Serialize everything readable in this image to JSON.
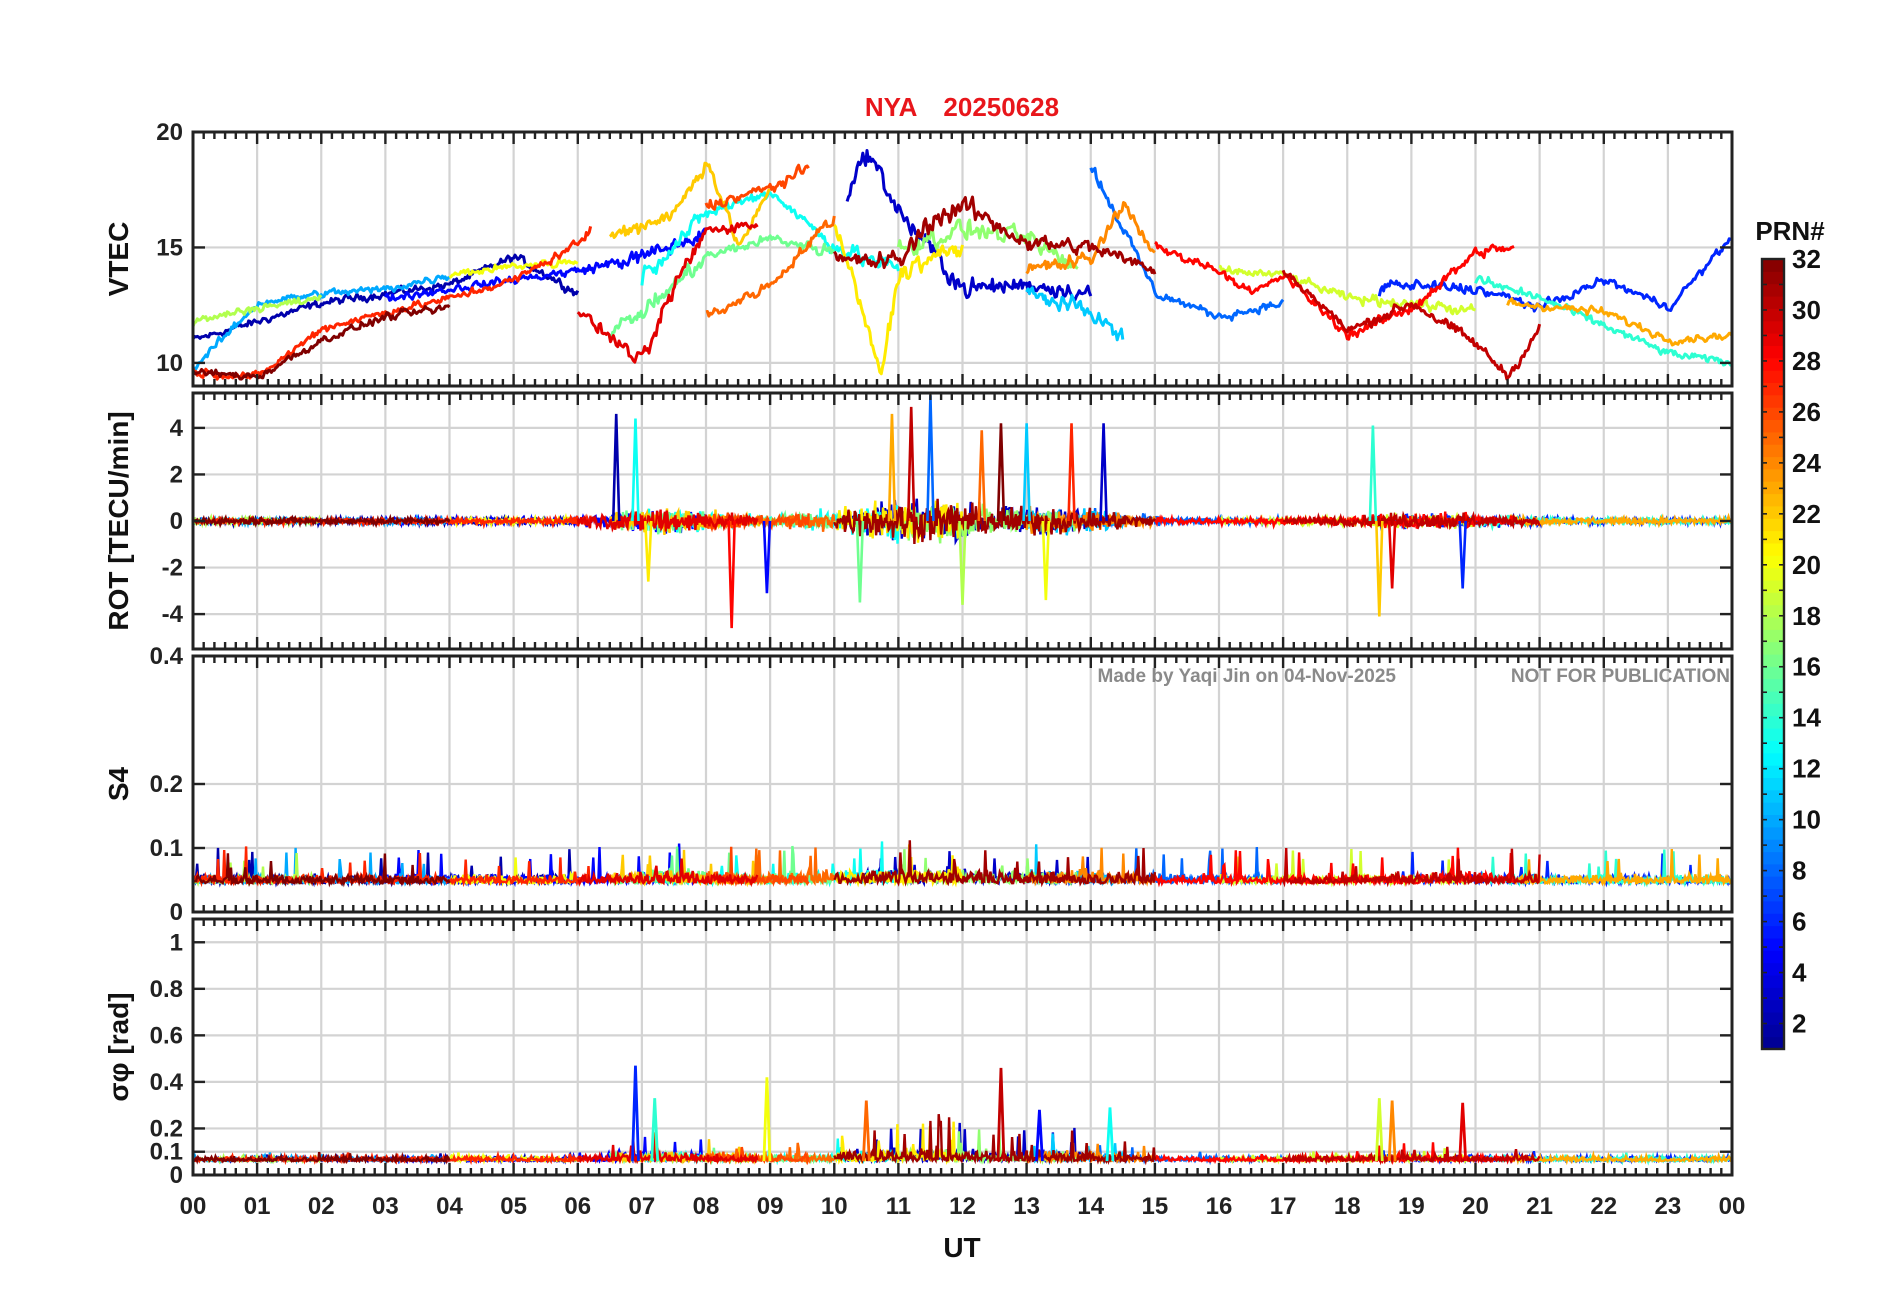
{
  "chart_data": {
    "type": "line",
    "title": {
      "station": "NYA",
      "date": "20250628"
    },
    "xlabel": "UT",
    "x_range": [
      0,
      24
    ],
    "x_ticks": [
      "00",
      "01",
      "02",
      "03",
      "04",
      "05",
      "06",
      "07",
      "08",
      "09",
      "10",
      "11",
      "12",
      "13",
      "14",
      "15",
      "16",
      "17",
      "18",
      "19",
      "20",
      "21",
      "22",
      "23",
      "00"
    ],
    "watermark": {
      "made_by": "Made by Yaqi Jin on 04-Nov-2025",
      "notice": "NOT FOR PUBLICATION"
    },
    "colorbar": {
      "label": "PRN#",
      "range": [
        1,
        32
      ],
      "ticks": [
        "2",
        "4",
        "6",
        "8",
        "10",
        "12",
        "14",
        "16",
        "18",
        "20",
        "22",
        "24",
        "26",
        "28",
        "30",
        "32"
      ],
      "colormap": [
        "#00008f",
        "#0000ff",
        "#0080ff",
        "#00ffff",
        "#80ff80",
        "#ffff00",
        "#ff8000",
        "#ff0000",
        "#800000"
      ]
    },
    "panels": [
      {
        "id": "vtec",
        "ylabel": "VTEC",
        "ylim": [
          9,
          20
        ],
        "yticks": [
          10,
          15,
          20
        ],
        "ytick_labels": [
          "10",
          "15",
          "20"
        ]
      },
      {
        "id": "rot",
        "ylabel": "ROT [TECU/min]",
        "ylim": [
          -5.5,
          5.5
        ],
        "yticks": [
          -4,
          -2,
          0,
          2,
          4
        ],
        "ytick_labels": [
          "-4",
          "-2",
          "0",
          "2",
          "4"
        ]
      },
      {
        "id": "s4",
        "ylabel": "S4",
        "ylim": [
          0,
          0.4
        ],
        "yticks": [
          0,
          0.1,
          0.2,
          0.4
        ],
        "ytick_labels": [
          "0",
          "0.1",
          "0.2",
          "0.4"
        ]
      },
      {
        "id": "sigma",
        "ylabel": "σφ [rad]",
        "ylim": [
          0,
          1.1
        ],
        "yticks": [
          0,
          0.1,
          0.2,
          0.4,
          0.6,
          0.8,
          1
        ],
        "ytick_labels": [
          "0",
          "0.1",
          "0.2",
          "0.4",
          "0.6",
          "0.8",
          "1"
        ]
      }
    ],
    "series": [
      {
        "prn": 2,
        "vtec": [
          [
            0,
            11.0
          ],
          [
            2,
            12.6
          ],
          [
            4,
            13.4
          ],
          [
            5,
            14.6
          ],
          [
            6,
            13.0
          ]
        ]
      },
      {
        "prn": 3,
        "vtec": [
          [
            10.2,
            17.5
          ],
          [
            10.5,
            19.2
          ],
          [
            11,
            16.5
          ],
          [
            12,
            13.2
          ],
          [
            13,
            13.4
          ],
          [
            14,
            13.0
          ]
        ]
      },
      {
        "prn": 5,
        "vtec": [
          [
            3,
            12.8
          ],
          [
            5,
            13.6
          ],
          [
            6,
            14.0
          ],
          [
            7,
            14.6
          ],
          [
            8,
            15.6
          ]
        ]
      },
      {
        "prn": 6,
        "vtec": [
          [
            18.5,
            13.4
          ],
          [
            20,
            13.2
          ],
          [
            21,
            12.4
          ],
          [
            22,
            13.6
          ],
          [
            23,
            12.4
          ],
          [
            24,
            15.5
          ]
        ]
      },
      {
        "prn": 8,
        "vtec": [
          [
            14,
            18.5
          ],
          [
            15,
            13.0
          ],
          [
            16,
            12.0
          ],
          [
            17,
            12.6
          ]
        ]
      },
      {
        "prn": 10,
        "vtec": [
          [
            0,
            9.8
          ],
          [
            1,
            12.6
          ],
          [
            2,
            13.0
          ],
          [
            3,
            13.2
          ],
          [
            4,
            13.8
          ]
        ]
      },
      {
        "prn": 11,
        "vtec": [
          [
            13,
            13.0
          ],
          [
            14,
            12.2
          ],
          [
            14.5,
            11.0
          ]
        ]
      },
      {
        "prn": 13,
        "vtec": [
          [
            7,
            13.8
          ],
          [
            8,
            16.5
          ],
          [
            9,
            17.4
          ],
          [
            10,
            15.0
          ],
          [
            11,
            14.0
          ]
        ]
      },
      {
        "prn": 14,
        "vtec": [
          [
            20,
            13.6
          ],
          [
            21,
            12.8
          ],
          [
            22,
            11.6
          ],
          [
            23,
            10.4
          ],
          [
            24,
            10.0
          ]
        ]
      },
      {
        "prn": 16,
        "vtec": [
          [
            6.5,
            11.4
          ],
          [
            7,
            12.2
          ],
          [
            8,
            14.6
          ],
          [
            9,
            15.4
          ],
          [
            10,
            14.8
          ]
        ]
      },
      {
        "prn": 17,
        "vtec": [
          [
            11,
            15.0
          ],
          [
            12,
            15.8
          ],
          [
            13,
            15.4
          ],
          [
            13.8,
            14.0
          ]
        ]
      },
      {
        "prn": 18,
        "vtec": [
          [
            0,
            11.8
          ],
          [
            1,
            12.4
          ],
          [
            2,
            12.8
          ]
        ]
      },
      {
        "prn": 19,
        "vtec": [
          [
            16,
            14.0
          ],
          [
            17,
            13.8
          ],
          [
            18,
            12.8
          ],
          [
            19,
            12.6
          ],
          [
            20,
            12.2
          ]
        ]
      },
      {
        "prn": 20,
        "vtec": [
          [
            4,
            13.8
          ],
          [
            5,
            14.2
          ],
          [
            6,
            14.4
          ]
        ]
      },
      {
        "prn": 21,
        "vtec": [
          [
            10,
            16.0
          ],
          [
            10.5,
            11.5
          ],
          [
            10.7,
            9.3
          ],
          [
            11,
            14.0
          ],
          [
            12,
            15.0
          ]
        ]
      },
      {
        "prn": 22,
        "vtec": [
          [
            6.5,
            15.5
          ],
          [
            7.5,
            16.5
          ],
          [
            8,
            18.8
          ],
          [
            8.5,
            15.0
          ],
          [
            9,
            17.6
          ]
        ]
      },
      {
        "prn": 23,
        "vtec": [
          [
            20.5,
            12.6
          ],
          [
            22,
            12.2
          ],
          [
            23,
            11.0
          ],
          [
            24,
            11.2
          ]
        ]
      },
      {
        "prn": 24,
        "vtec": [
          [
            13,
            14.0
          ],
          [
            14,
            14.5
          ],
          [
            14.5,
            17.0
          ],
          [
            15,
            14.5
          ]
        ]
      },
      {
        "prn": 25,
        "vtec": [
          [
            8,
            12.0
          ],
          [
            9,
            13.4
          ],
          [
            10,
            16.4
          ]
        ]
      },
      {
        "prn": 26,
        "vtec": [
          [
            8,
            16.8
          ],
          [
            9,
            17.6
          ],
          [
            9.6,
            18.4
          ]
        ]
      },
      {
        "prn": 27,
        "vtec": [
          [
            0,
            9.6
          ],
          [
            1,
            9.4
          ],
          [
            2,
            11.5
          ],
          [
            3,
            12.2
          ],
          [
            4,
            12.8
          ],
          [
            5,
            13.6
          ],
          [
            6,
            15.2
          ],
          [
            6.2,
            15.8
          ]
        ]
      },
      {
        "prn": 28,
        "vtec": [
          [
            15,
            15.0
          ],
          [
            16,
            14.0
          ],
          [
            16.5,
            13.0
          ],
          [
            17,
            13.8
          ],
          [
            18,
            11.2
          ],
          [
            19,
            12.4
          ],
          [
            20,
            14.8
          ],
          [
            20.6,
            15.0
          ]
        ]
      },
      {
        "prn": 29,
        "vtec": [
          [
            6,
            12.2
          ],
          [
            7,
            10.0
          ],
          [
            7.5,
            13.4
          ],
          [
            8,
            15.8
          ],
          [
            8.8,
            16.0
          ]
        ]
      },
      {
        "prn": 30,
        "vtec": [
          [
            17,
            14.0
          ],
          [
            18,
            11.4
          ],
          [
            19,
            12.6
          ],
          [
            20,
            10.8
          ],
          [
            20.5,
            9.4
          ],
          [
            21,
            11.6
          ]
        ]
      },
      {
        "prn": 31,
        "vtec": [
          [
            10,
            14.4
          ],
          [
            11,
            14.4
          ],
          [
            11.5,
            16.2
          ],
          [
            12,
            16.8
          ],
          [
            13,
            15.2
          ],
          [
            14,
            15.0
          ],
          [
            15,
            14.0
          ]
        ]
      },
      {
        "prn": 32,
        "vtec": [
          [
            0,
            9.6
          ],
          [
            1,
            9.4
          ],
          [
            2,
            11.0
          ],
          [
            3,
            12.0
          ],
          [
            4,
            12.4
          ]
        ]
      }
    ],
    "rot_peaks": [
      {
        "t": 6.6,
        "v": 4.6
      },
      {
        "t": 6.9,
        "v": 4.4
      },
      {
        "t": 7.1,
        "v": -2.6
      },
      {
        "t": 8.4,
        "v": -4.6
      },
      {
        "t": 8.95,
        "v": -3.1
      },
      {
        "t": 10.4,
        "v": -3.5
      },
      {
        "t": 10.9,
        "v": 4.6
      },
      {
        "t": 11.2,
        "v": 4.9
      },
      {
        "t": 11.5,
        "v": 5.4
      },
      {
        "t": 12.0,
        "v": -3.6
      },
      {
        "t": 12.3,
        "v": 3.9
      },
      {
        "t": 12.6,
        "v": 4.2
      },
      {
        "t": 13.0,
        "v": 4.2
      },
      {
        "t": 13.3,
        "v": -3.4
      },
      {
        "t": 13.7,
        "v": 4.2
      },
      {
        "t": 14.2,
        "v": 4.2
      },
      {
        "t": 18.4,
        "v": 4.1
      },
      {
        "t": 18.5,
        "v": -4.1
      },
      {
        "t": 18.7,
        "v": -2.9
      },
      {
        "t": 19.8,
        "v": -2.9
      }
    ],
    "s4_baseline": 0.045,
    "sigma_baseline": 0.06,
    "sigma_peaks": [
      {
        "t": 6.9,
        "v": 0.47
      },
      {
        "t": 7.2,
        "v": 0.33
      },
      {
        "t": 8.95,
        "v": 0.42
      },
      {
        "t": 10.5,
        "v": 0.32
      },
      {
        "t": 12.6,
        "v": 0.46
      },
      {
        "t": 13.2,
        "v": 0.28
      },
      {
        "t": 14.3,
        "v": 0.29
      },
      {
        "t": 18.5,
        "v": 0.33
      },
      {
        "t": 18.7,
        "v": 0.32
      },
      {
        "t": 19.8,
        "v": 0.31
      }
    ]
  }
}
